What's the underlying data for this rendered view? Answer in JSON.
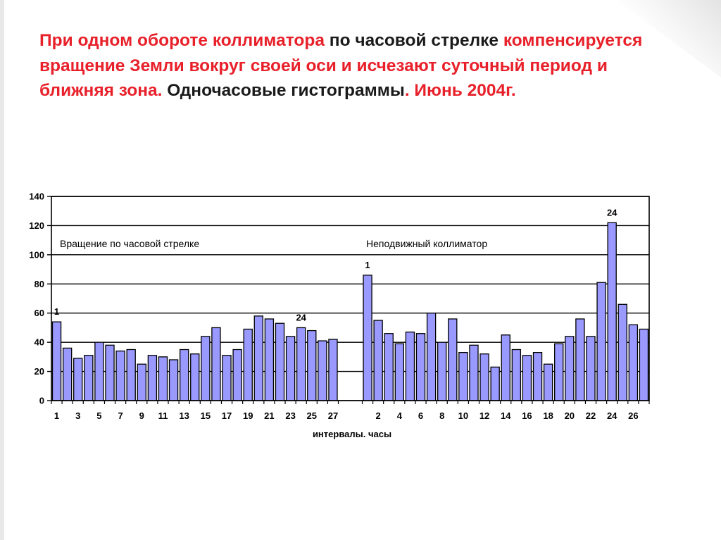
{
  "slide": {
    "title_parts": [
      {
        "text": "При одном обороте коллиматора",
        "color": "#e8202a"
      },
      {
        "text": " по часовой стрелке ",
        "color": "#1a1a1a"
      },
      {
        "text": "компенсируется вращение Земли вокруг своей оси и исчезают суточный период и ближняя зона.",
        "color": "#e8202a"
      },
      {
        "text": " Одночасовые гистограммы",
        "color": "#1a1a1a"
      },
      {
        "text": ". Июнь 2004г.",
        "color": "#e8202a"
      }
    ]
  },
  "chart_data": {
    "type": "bar",
    "title": "",
    "xlabel": "интервалы. часы",
    "ylabel": "",
    "ylim": [
      0,
      140
    ],
    "yticks": [
      0,
      20,
      40,
      60,
      80,
      100,
      120,
      140
    ],
    "grid": true,
    "bar_color": "#9999ff",
    "series": [
      {
        "label": "Вращение по часовой стрелке",
        "hours": [
          1,
          2,
          3,
          4,
          5,
          6,
          7,
          8,
          9,
          10,
          11,
          12,
          13,
          14,
          15,
          16,
          17,
          18,
          19,
          20,
          21,
          22,
          23,
          24,
          25,
          26,
          27
        ],
        "values": [
          54,
          36,
          29,
          31,
          40,
          38,
          34,
          35,
          25,
          31,
          30,
          28,
          35,
          32,
          44,
          50,
          31,
          35,
          49,
          58,
          56,
          53,
          44,
          50,
          48,
          41,
          42
        ],
        "tick_labels": [
          "1",
          "3",
          "5",
          "7",
          "9",
          "11",
          "13",
          "15",
          "17",
          "19",
          "21",
          "23",
          "25",
          "27"
        ],
        "marks": [
          {
            "label": "1",
            "hour": 1
          },
          {
            "label": "24",
            "hour": 24
          }
        ]
      },
      {
        "label": "Неподвижный коллиматор",
        "hours": [
          1,
          2,
          3,
          4,
          5,
          6,
          7,
          8,
          9,
          10,
          11,
          12,
          13,
          14,
          15,
          16,
          17,
          18,
          19,
          20,
          21,
          22,
          23,
          24,
          25,
          26,
          27
        ],
        "values": [
          86,
          55,
          46,
          39,
          47,
          46,
          60,
          40,
          56,
          33,
          38,
          32,
          23,
          45,
          35,
          31,
          33,
          25,
          39,
          44,
          56,
          44,
          81,
          122,
          66,
          52,
          49
        ],
        "tick_labels": [
          "2",
          "4",
          "6",
          "8",
          "10",
          "12",
          "14",
          "16",
          "18",
          "20",
          "22",
          "24",
          "26"
        ],
        "marks": [
          {
            "label": "1",
            "hour": 1
          },
          {
            "label": "24",
            "hour": 24
          }
        ]
      }
    ]
  }
}
